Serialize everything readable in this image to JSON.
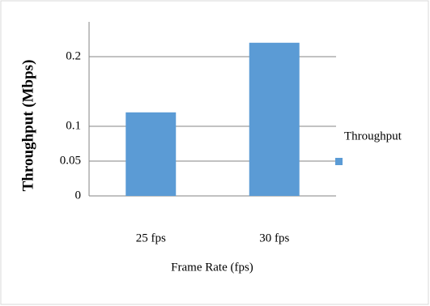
{
  "chart_data": {
    "type": "bar",
    "y_label": "Throughput (Mbps)",
    "x_label": "Frame Rate (fps)",
    "categories": [
      "25 fps",
      "30 fps"
    ],
    "series": [
      {
        "name": "Throughput",
        "color": "#5b9bd5",
        "values": [
          0.12,
          0.22
        ]
      }
    ],
    "ylim": [
      0,
      0.25
    ],
    "yticks": [
      0,
      0.05,
      0.1,
      0.2
    ],
    "grid": true,
    "legend": "right"
  }
}
